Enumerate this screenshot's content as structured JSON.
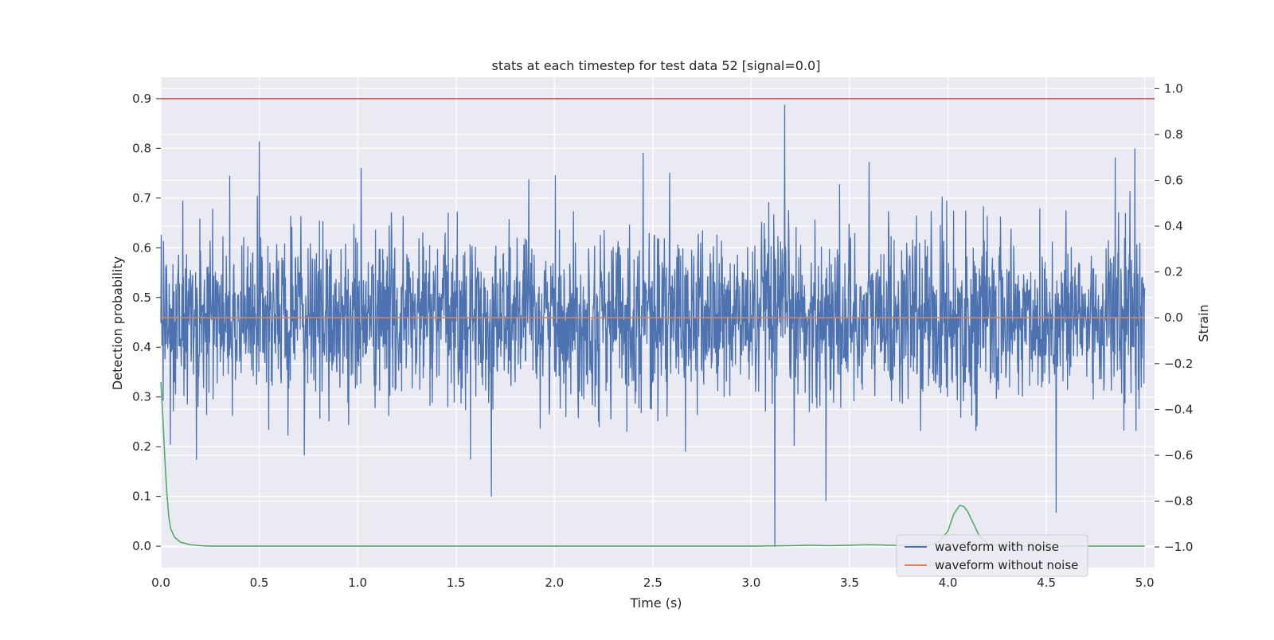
{
  "chart_data": {
    "type": "line",
    "title": "stats at each timestep for test data 52 [signal=0.0]",
    "xlabel": "Time (s)",
    "ylabel": "Detection probability",
    "ylabel_right": "Strain",
    "xlim": [
      0.0,
      5.05
    ],
    "ylim_left": [
      -0.043,
      0.943
    ],
    "ylim_right": [
      -1.09,
      1.05
    ],
    "x_ticks": [
      0.0,
      0.5,
      1.0,
      1.5,
      2.0,
      2.5,
      3.0,
      3.5,
      4.0,
      4.5,
      5.0
    ],
    "x_tick_labels": [
      "0.0",
      "0.5",
      "1.0",
      "1.5",
      "2.0",
      "2.5",
      "3.0",
      "3.5",
      "4.0",
      "4.5",
      "5.0"
    ],
    "y_left_ticks": [
      0.0,
      0.1,
      0.2,
      0.3,
      0.4,
      0.5,
      0.6,
      0.7,
      0.8,
      0.9
    ],
    "y_left_tick_labels": [
      "0.0",
      "0.1",
      "0.2",
      "0.3",
      "0.4",
      "0.5",
      "0.6",
      "0.7",
      "0.8",
      "0.9"
    ],
    "y_right_ticks": [
      -1.0,
      -0.8,
      -0.6,
      -0.4,
      -0.2,
      0.0,
      0.2,
      0.4,
      0.6,
      0.8,
      1.0
    ],
    "y_right_tick_labels": [
      "−1.0",
      "−0.8",
      "−0.6",
      "−0.4",
      "−0.2",
      "0.0",
      "0.2",
      "0.4",
      "0.6",
      "0.8",
      "1.0"
    ],
    "grid": true,
    "legend_position": "lower-right",
    "series": [
      {
        "name": "waveform with noise",
        "axis": "right",
        "color": "#4c72b0",
        "style": "noise",
        "x_range": [
          0.0,
          5.0
        ],
        "amplitude_typical": 0.3,
        "peaks": [
          {
            "x": 0.5,
            "y": 0.77
          },
          {
            "x": 2.45,
            "y": 0.72
          },
          {
            "x": 3.17,
            "y": 0.93
          },
          {
            "x": 3.12,
            "y": -1.0
          },
          {
            "x": 3.6,
            "y": 0.68
          },
          {
            "x": 4.95,
            "y": 0.74
          },
          {
            "x": 4.55,
            "y": -0.85
          },
          {
            "x": 1.68,
            "y": -0.78
          },
          {
            "x": 0.35,
            "y": 0.62
          },
          {
            "x": 4.85,
            "y": 0.7
          },
          {
            "x": 3.38,
            "y": -0.8
          },
          {
            "x": 0.18,
            "y": -0.62
          }
        ]
      },
      {
        "name": "waveform without noise",
        "axis": "right",
        "color": "#dd8452",
        "x": [
          0.0,
          5.0
        ],
        "y": [
          0.0,
          0.0
        ]
      },
      {
        "name": "",
        "axis": "left",
        "color": "#55a868",
        "x": [
          0.0,
          0.01,
          0.02,
          0.03,
          0.04,
          0.05,
          0.07,
          0.1,
          0.15,
          0.2,
          0.25,
          1.0,
          2.0,
          3.0,
          3.2,
          3.3,
          3.4,
          3.5,
          3.6,
          3.7,
          3.8,
          3.9,
          3.95,
          4.0,
          4.03,
          4.06,
          4.08,
          4.1,
          4.13,
          4.16,
          4.2,
          4.25,
          4.3,
          5.0
        ],
        "y": [
          0.33,
          0.26,
          0.18,
          0.11,
          0.06,
          0.035,
          0.018,
          0.008,
          0.003,
          0.001,
          0.0,
          0.0,
          0.0,
          0.0,
          0.001,
          0.002,
          0.001,
          0.002,
          0.003,
          0.002,
          0.001,
          0.002,
          0.008,
          0.03,
          0.065,
          0.082,
          0.08,
          0.07,
          0.045,
          0.02,
          0.005,
          0.001,
          0.0,
          0.0
        ]
      },
      {
        "name": "",
        "axis": "left",
        "color": "#c44e52",
        "x": [
          0.0,
          5.05
        ],
        "y": [
          0.9,
          0.9
        ]
      }
    ],
    "legend": [
      "waveform with noise",
      "waveform without noise"
    ]
  }
}
